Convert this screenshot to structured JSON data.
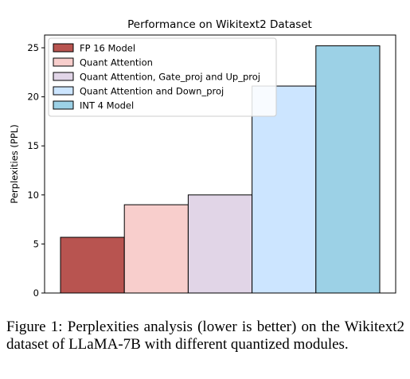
{
  "chart_data": {
    "type": "bar",
    "title": "Performance on Wikitext2 Dataset",
    "ylabel": "Perplexities (PPL)",
    "xlabel": "",
    "ylim": [
      0,
      26.3
    ],
    "yticks": [
      0,
      5,
      10,
      15,
      20,
      25
    ],
    "grid": false,
    "legend_position": "top-left",
    "series": [
      {
        "name": "FP 16 Model",
        "value": 5.68,
        "color": "#b85450"
      },
      {
        "name": "Quant Attention",
        "value": 9.0,
        "color": "#f8cecc"
      },
      {
        "name": "Quant Attention, Gate_proj and Up_proj",
        "value": 10.0,
        "color": "#e1d5e7"
      },
      {
        "name": "Quant Attention and Down_proj",
        "value": 21.1,
        "color": "#cce5ff"
      },
      {
        "name": "INT 4 Model",
        "value": 25.2,
        "color": "#9cd1e6"
      }
    ]
  },
  "caption": "Figure 1: Perplexities analysis (lower is better) on the Wikitext2 dataset of LLaMA-7B with different quantized modules."
}
